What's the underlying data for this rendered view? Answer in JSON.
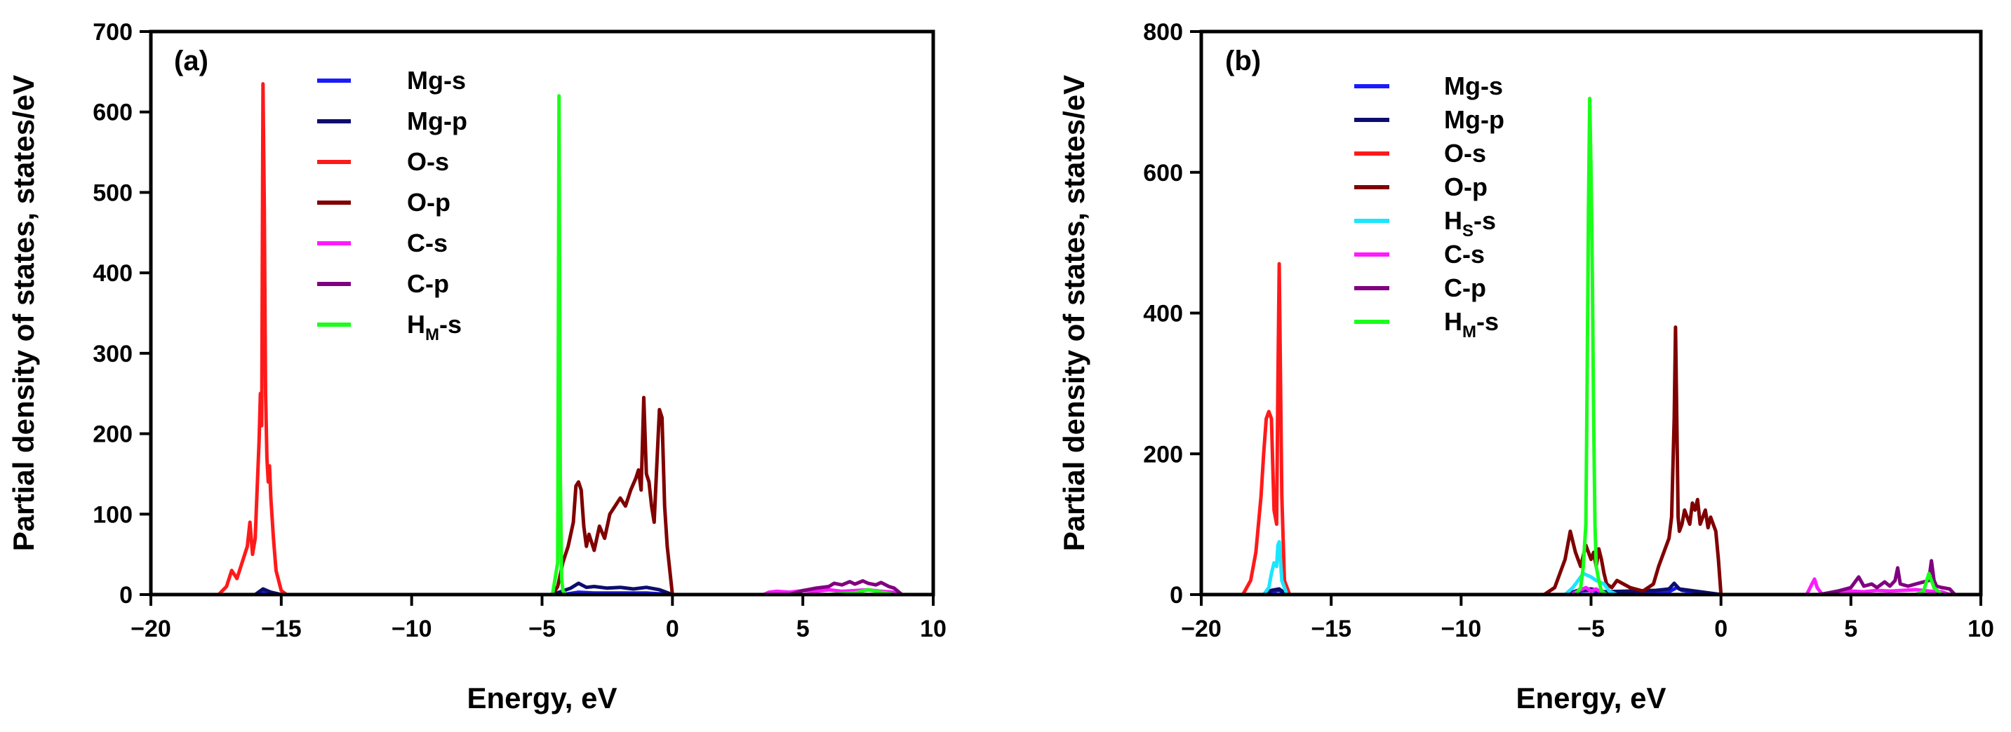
{
  "chart_data": [
    {
      "panel_label": "(a)",
      "type": "line",
      "xlabel": "Energy, eV",
      "ylabel": "Partial density of states, states/eV",
      "xlim": [
        -20,
        10
      ],
      "ylim": [
        0,
        700
      ],
      "xticks": [
        -20,
        -15,
        -10,
        -5,
        0,
        5,
        10
      ],
      "xtick_labels": [
        "−20",
        "−15",
        "−10",
        "−5",
        "0",
        "5",
        "10"
      ],
      "yticks": [
        0,
        100,
        200,
        300,
        400,
        500,
        600,
        700
      ],
      "ytick_labels": [
        "0",
        "100",
        "200",
        "300",
        "400",
        "500",
        "600",
        "700"
      ],
      "legend_position": "top-left",
      "series": [
        {
          "name": "Mg-s",
          "label": "Mg-s",
          "color": "#1a1aff",
          "x": [
            -18.4,
            -16,
            -15.8,
            -15.6,
            -15.4,
            -15,
            -4.6,
            -4,
            -3.6,
            -3,
            -2,
            -1,
            0,
            10
          ],
          "y": [
            0,
            0,
            2,
            4,
            2,
            0,
            0,
            1,
            3,
            2,
            2,
            2,
            0,
            0
          ]
        },
        {
          "name": "Mg-p",
          "label": "Mg-p",
          "color": "#0d0d6e",
          "x": [
            -20,
            -18.4,
            -16,
            -15.7,
            -15.4,
            -15,
            -4.6,
            -3.9,
            -3.6,
            -3.3,
            -3,
            -2.5,
            -2,
            -1.5,
            -1,
            -0.5,
            0,
            10
          ],
          "y": [
            0,
            0,
            0,
            7,
            3,
            0,
            0,
            8,
            14,
            9,
            10,
            8,
            9,
            7,
            9,
            6,
            0,
            0
          ]
        },
        {
          "name": "O-s",
          "label": "O-s",
          "color": "#ff1a1a",
          "x": [
            -17.4,
            -17.1,
            -16.9,
            -16.7,
            -16.5,
            -16.3,
            -16.2,
            -16.1,
            -16,
            -15.95,
            -15.85,
            -15.8,
            -15.75,
            -15.7,
            -15.65,
            -15.6,
            -15.55,
            -15.5,
            -15.45,
            -15.4,
            -15.3,
            -15.2,
            -15,
            -14.8
          ],
          "y": [
            0,
            10,
            30,
            20,
            40,
            60,
            90,
            50,
            70,
            110,
            190,
            250,
            210,
            635,
            480,
            250,
            170,
            140,
            160,
            120,
            70,
            30,
            5,
            0
          ]
        },
        {
          "name": "O-p",
          "label": "O-p",
          "color": "#800000",
          "x": [
            -4.6,
            -4.4,
            -4.2,
            -4,
            -3.8,
            -3.7,
            -3.6,
            -3.5,
            -3.4,
            -3.3,
            -3.2,
            -3,
            -2.8,
            -2.6,
            -2.4,
            -2.2,
            -2,
            -1.8,
            -1.6,
            -1.4,
            -1.3,
            -1.2,
            -1.1,
            -1,
            -0.9,
            -0.8,
            -0.7,
            -0.6,
            -0.5,
            -0.4,
            -0.3,
            -0.2,
            -0.1,
            0,
            10
          ],
          "y": [
            0,
            10,
            40,
            60,
            90,
            135,
            140,
            130,
            85,
            60,
            75,
            55,
            85,
            70,
            100,
            110,
            120,
            110,
            130,
            145,
            155,
            130,
            245,
            150,
            140,
            110,
            90,
            160,
            230,
            220,
            110,
            60,
            30,
            0,
            0
          ]
        },
        {
          "name": "C-s",
          "label": "C-s",
          "color": "#ff1aff",
          "x": [
            -20,
            3.5,
            3.7,
            4,
            4.5,
            5,
            5.5,
            6,
            6.5,
            7,
            7.5,
            8,
            8.5,
            8.7,
            10
          ],
          "y": [
            0,
            0,
            3,
            4,
            3,
            5,
            4,
            6,
            4,
            5,
            6,
            4,
            3,
            0,
            0
          ]
        },
        {
          "name": "C-p",
          "label": "C-p",
          "color": "#800080",
          "x": [
            -20,
            4.5,
            5,
            5.5,
            6,
            6.2,
            6.5,
            6.8,
            7,
            7.3,
            7.5,
            7.8,
            8,
            8.3,
            8.5,
            8.8,
            10
          ],
          "y": [
            0,
            0,
            5,
            8,
            10,
            14,
            12,
            16,
            13,
            17,
            14,
            12,
            15,
            10,
            8,
            0,
            0
          ]
        },
        {
          "name": "HM-s",
          "label": "H",
          "label_sub": "M",
          "label_tail": "-s",
          "color": "#1aff1a",
          "x": [
            -18.4,
            -4.6,
            -4.5,
            -4.4,
            -4.35,
            -4.3,
            -4.25,
            -4.2,
            -4.1,
            -4,
            6,
            7,
            7.5,
            8,
            8.5,
            10
          ],
          "y": [
            0,
            0,
            20,
            40,
            620,
            150,
            20,
            5,
            0,
            0,
            0,
            2,
            6,
            3,
            0,
            0
          ]
        }
      ]
    },
    {
      "panel_label": "(b)",
      "type": "line",
      "xlabel": "Energy, eV",
      "ylabel": "Partial density of states, states/eV",
      "xlim": [
        -20,
        10
      ],
      "ylim": [
        0,
        800
      ],
      "xticks": [
        -20,
        -15,
        -10,
        -5,
        0,
        5,
        10
      ],
      "xtick_labels": [
        "−20",
        "−15",
        "−10",
        "−5",
        "0",
        "5",
        "10"
      ],
      "yticks": [
        0,
        200,
        400,
        600,
        800
      ],
      "ytick_labels": [
        "0",
        "200",
        "400",
        "600",
        "800"
      ],
      "legend_position": "top-left",
      "series": [
        {
          "name": "Mg-s",
          "label": "Mg-s",
          "color": "#1a1aff",
          "x": [
            -20,
            -17.6,
            -17.3,
            -17,
            -16.7,
            -6,
            -5.5,
            -5,
            -4.5,
            -2,
            -1.7,
            -1.5,
            -1,
            0,
            10
          ],
          "y": [
            0,
            0,
            4,
            6,
            0,
            0,
            5,
            6,
            3,
            4,
            10,
            6,
            3,
            0,
            0
          ]
        },
        {
          "name": "Mg-p",
          "label": "Mg-p",
          "color": "#0d0d6e",
          "x": [
            -20,
            -17.6,
            -17.3,
            -17,
            -16.7,
            -6,
            -5.5,
            -5,
            -4.5,
            -2.5,
            -2,
            -1.8,
            -1.6,
            -1,
            0,
            10
          ],
          "y": [
            0,
            0,
            6,
            8,
            0,
            0,
            6,
            8,
            4,
            6,
            8,
            16,
            8,
            5,
            0,
            0
          ]
        },
        {
          "name": "O-s",
          "label": "O-s",
          "color": "#ff1a1a",
          "x": [
            -18.4,
            -18.1,
            -17.9,
            -17.7,
            -17.6,
            -17.5,
            -17.4,
            -17.35,
            -17.3,
            -17.2,
            -17.1,
            -17.05,
            -17,
            -16.95,
            -16.9,
            -16.8,
            -16.6
          ],
          "y": [
            0,
            20,
            60,
            140,
            200,
            250,
            260,
            255,
            250,
            120,
            100,
            300,
            470,
            300,
            140,
            20,
            0
          ]
        },
        {
          "name": "O-p",
          "label": "O-p",
          "color": "#800000",
          "x": [
            -6.8,
            -6.4,
            -6,
            -5.8,
            -5.6,
            -5.4,
            -5.2,
            -5,
            -4.9,
            -4.8,
            -4.7,
            -4.6,
            -4.5,
            -4.4,
            -4.2,
            -4,
            -3.5,
            -3,
            -2.6,
            -2.4,
            -2.2,
            -2,
            -1.9,
            -1.8,
            -1.75,
            -1.7,
            -1.65,
            -1.6,
            -1.5,
            -1.4,
            -1.3,
            -1.2,
            -1.1,
            -1,
            -0.9,
            -0.8,
            -0.7,
            -0.6,
            -0.5,
            -0.4,
            -0.3,
            -0.2,
            -0.1,
            0,
            10
          ],
          "y": [
            0,
            10,
            50,
            90,
            60,
            40,
            70,
            50,
            60,
            40,
            65,
            50,
            30,
            15,
            10,
            20,
            10,
            5,
            15,
            40,
            60,
            80,
            110,
            250,
            380,
            250,
            110,
            90,
            100,
            120,
            110,
            100,
            130,
            120,
            135,
            100,
            110,
            120,
            95,
            110,
            100,
            90,
            50,
            0,
            0
          ]
        },
        {
          "name": "HS-s",
          "label": "H",
          "label_sub": "S",
          "label_tail": "-s",
          "color": "#1ae6ff",
          "x": [
            -20,
            -17.6,
            -17.4,
            -17.3,
            -17.2,
            -17.1,
            -17.05,
            -17,
            -16.9,
            -16.7,
            -6,
            -5.7,
            -5.5,
            -5.3,
            -5,
            -4.8,
            -4.5,
            -4.3,
            -4,
            10
          ],
          "y": [
            0,
            0,
            10,
            30,
            45,
            40,
            70,
            75,
            20,
            0,
            0,
            10,
            20,
            30,
            25,
            20,
            15,
            5,
            0,
            0
          ]
        },
        {
          "name": "C-s",
          "label": "C-s",
          "color": "#ff1aff",
          "x": [
            -20,
            -5.8,
            -5.5,
            -5.2,
            -5,
            -4.8,
            -4.5,
            3.3,
            3.5,
            3.6,
            3.7,
            3.9,
            4.5,
            5,
            5.5,
            6,
            6.5,
            7,
            7.5,
            8,
            8.5,
            8.8,
            10
          ],
          "y": [
            0,
            0,
            5,
            10,
            5,
            8,
            0,
            0,
            15,
            22,
            10,
            0,
            3,
            5,
            4,
            6,
            5,
            6,
            7,
            5,
            4,
            0,
            0
          ]
        },
        {
          "name": "C-p",
          "label": "C-p",
          "color": "#800080",
          "x": [
            -20,
            3.8,
            4.5,
            5,
            5.3,
            5.5,
            5.8,
            6,
            6.3,
            6.5,
            6.7,
            6.8,
            6.9,
            7.2,
            7.5,
            7.8,
            8,
            8.1,
            8.2,
            8.3,
            8.5,
            8.8,
            9,
            10
          ],
          "y": [
            0,
            0,
            5,
            10,
            25,
            12,
            15,
            10,
            18,
            12,
            20,
            38,
            15,
            12,
            15,
            18,
            20,
            48,
            20,
            12,
            10,
            8,
            0,
            0
          ]
        },
        {
          "name": "HM-s",
          "label": "H",
          "label_sub": "M",
          "label_tail": "-s",
          "color": "#1aff1a",
          "x": [
            -20,
            -5.6,
            -5.4,
            -5.3,
            -5.2,
            -5.15,
            -5.1,
            -5.05,
            -5,
            -4.95,
            -4.9,
            -4.85,
            -4.8,
            -4.7,
            -4.6,
            -4.4,
            7.5,
            7.8,
            8,
            8.2,
            8.5,
            10
          ],
          "y": [
            0,
            0,
            10,
            40,
            100,
            300,
            550,
            705,
            600,
            450,
            250,
            100,
            40,
            20,
            5,
            0,
            0,
            5,
            30,
            10,
            0,
            0
          ]
        }
      ]
    }
  ]
}
